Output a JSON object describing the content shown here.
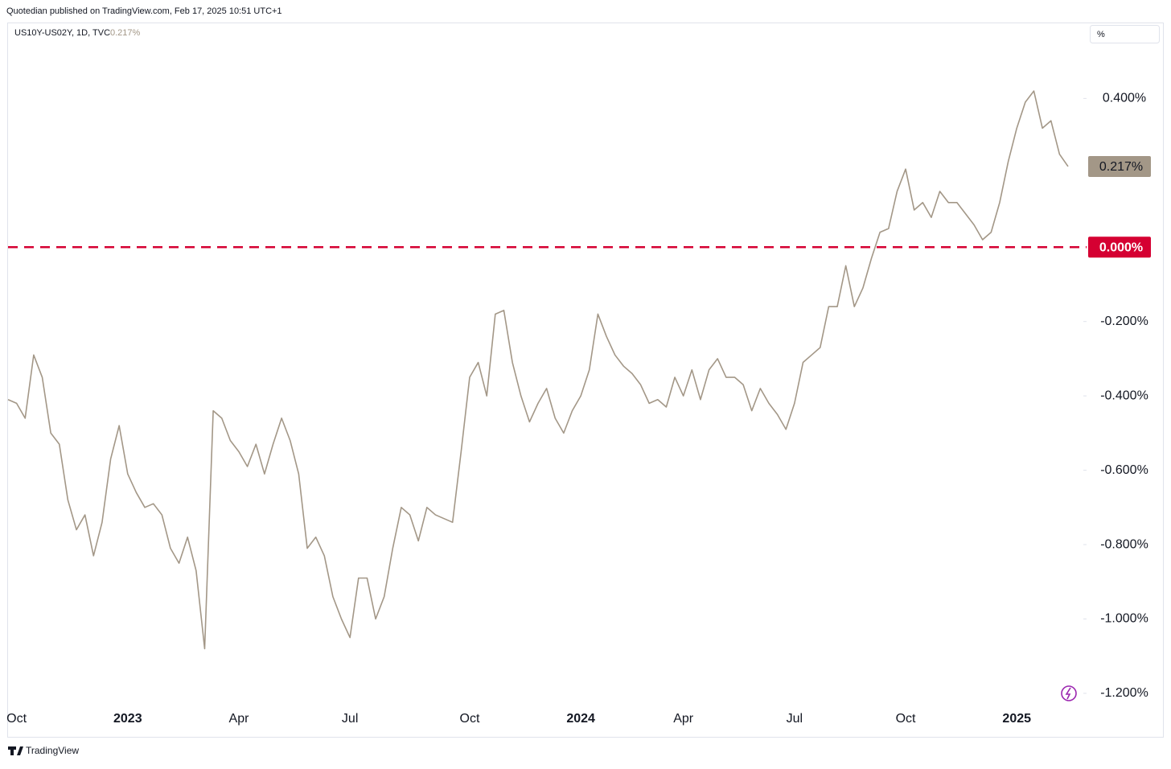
{
  "header": {
    "publisher": "Quotedian published on TradingView.com, Feb 17, 2025 10:51 UTC+1",
    "symbol": "US10Y-US02Y, 1D, TVC",
    "unit_button": "%"
  },
  "footer": {
    "brand": "TradingView"
  },
  "chart_data": {
    "type": "line",
    "categories": [
      null,
      "Oct",
      null,
      null,
      null,
      null,
      null,
      null,
      null,
      null,
      null,
      null,
      null,
      null,
      "2023",
      null,
      null,
      null,
      null,
      null,
      null,
      null,
      null,
      null,
      null,
      null,
      null,
      "Apr",
      null,
      null,
      null,
      null,
      null,
      null,
      null,
      null,
      null,
      null,
      null,
      null,
      "Jul",
      null,
      null,
      null,
      null,
      null,
      null,
      null,
      null,
      null,
      null,
      null,
      null,
      null,
      "Oct",
      null,
      null,
      null,
      null,
      null,
      null,
      null,
      null,
      null,
      null,
      null,
      null,
      "2024",
      null,
      null,
      null,
      null,
      null,
      null,
      null,
      null,
      null,
      null,
      null,
      "Apr",
      null,
      null,
      null,
      null,
      null,
      null,
      null,
      null,
      null,
      null,
      null,
      null,
      "Jul",
      null,
      null,
      null,
      null,
      null,
      null,
      null,
      null,
      null,
      null,
      null,
      null,
      "Oct",
      null,
      null,
      null,
      null,
      null,
      null,
      null,
      null,
      null,
      null,
      null,
      null,
      "2025",
      null,
      null,
      null,
      null,
      null,
      null
    ],
    "series": [
      {
        "name": "US10Y-US02Y",
        "color": "#a39787",
        "values": [
          -0.41,
          -0.42,
          -0.46,
          -0.29,
          -0.35,
          -0.5,
          -0.53,
          -0.68,
          -0.76,
          -0.72,
          -0.83,
          -0.74,
          -0.57,
          -0.48,
          -0.61,
          -0.66,
          -0.7,
          -0.69,
          -0.72,
          -0.81,
          -0.85,
          -0.78,
          -0.87,
          -1.08,
          -0.44,
          -0.46,
          -0.52,
          -0.55,
          -0.59,
          -0.53,
          -0.61,
          -0.53,
          -0.46,
          -0.52,
          -0.61,
          -0.81,
          -0.78,
          -0.83,
          -0.94,
          -1.0,
          -1.05,
          -0.89,
          -0.89,
          -1.0,
          -0.94,
          -0.81,
          -0.7,
          -0.72,
          -0.79,
          -0.7,
          -0.72,
          -0.73,
          -0.74,
          -0.55,
          -0.35,
          -0.31,
          -0.4,
          -0.18,
          -0.17,
          -0.31,
          -0.4,
          -0.47,
          -0.42,
          -0.38,
          -0.46,
          -0.5,
          -0.44,
          -0.4,
          -0.33,
          -0.18,
          -0.24,
          -0.29,
          -0.32,
          -0.34,
          -0.37,
          -0.42,
          -0.41,
          -0.43,
          -0.35,
          -0.4,
          -0.33,
          -0.41,
          -0.33,
          -0.3,
          -0.35,
          -0.35,
          -0.37,
          -0.44,
          -0.38,
          -0.42,
          -0.45,
          -0.49,
          -0.42,
          -0.31,
          -0.29,
          -0.27,
          -0.16,
          -0.16,
          -0.05,
          -0.16,
          -0.11,
          -0.03,
          0.04,
          0.05,
          0.15,
          0.21,
          0.1,
          0.12,
          0.08,
          0.15,
          0.12,
          0.12,
          0.09,
          0.06,
          0.02,
          0.04,
          0.12,
          0.23,
          0.32,
          0.39,
          0.42,
          0.32,
          0.34,
          0.25,
          0.217
        ]
      }
    ],
    "price_tag": {
      "value": 0.217,
      "label": "0.217%"
    },
    "reference_line": {
      "value": 0,
      "label": "0.000%",
      "color": "#d50032"
    },
    "ylim": [
      -1.317,
      0.602
    ],
    "yticks": [
      {
        "value": 0.4,
        "label": "0.400%"
      },
      {
        "value": -0.2,
        "label": "-0.200%"
      },
      {
        "value": -0.4,
        "label": "-0.400%"
      },
      {
        "value": -0.6,
        "label": "-0.600%"
      },
      {
        "value": -0.8,
        "label": "-0.800%"
      },
      {
        "value": -1.0,
        "label": "-1.000%"
      },
      {
        "value": -1.2,
        "label": "-1.200%"
      }
    ],
    "grid": false
  }
}
